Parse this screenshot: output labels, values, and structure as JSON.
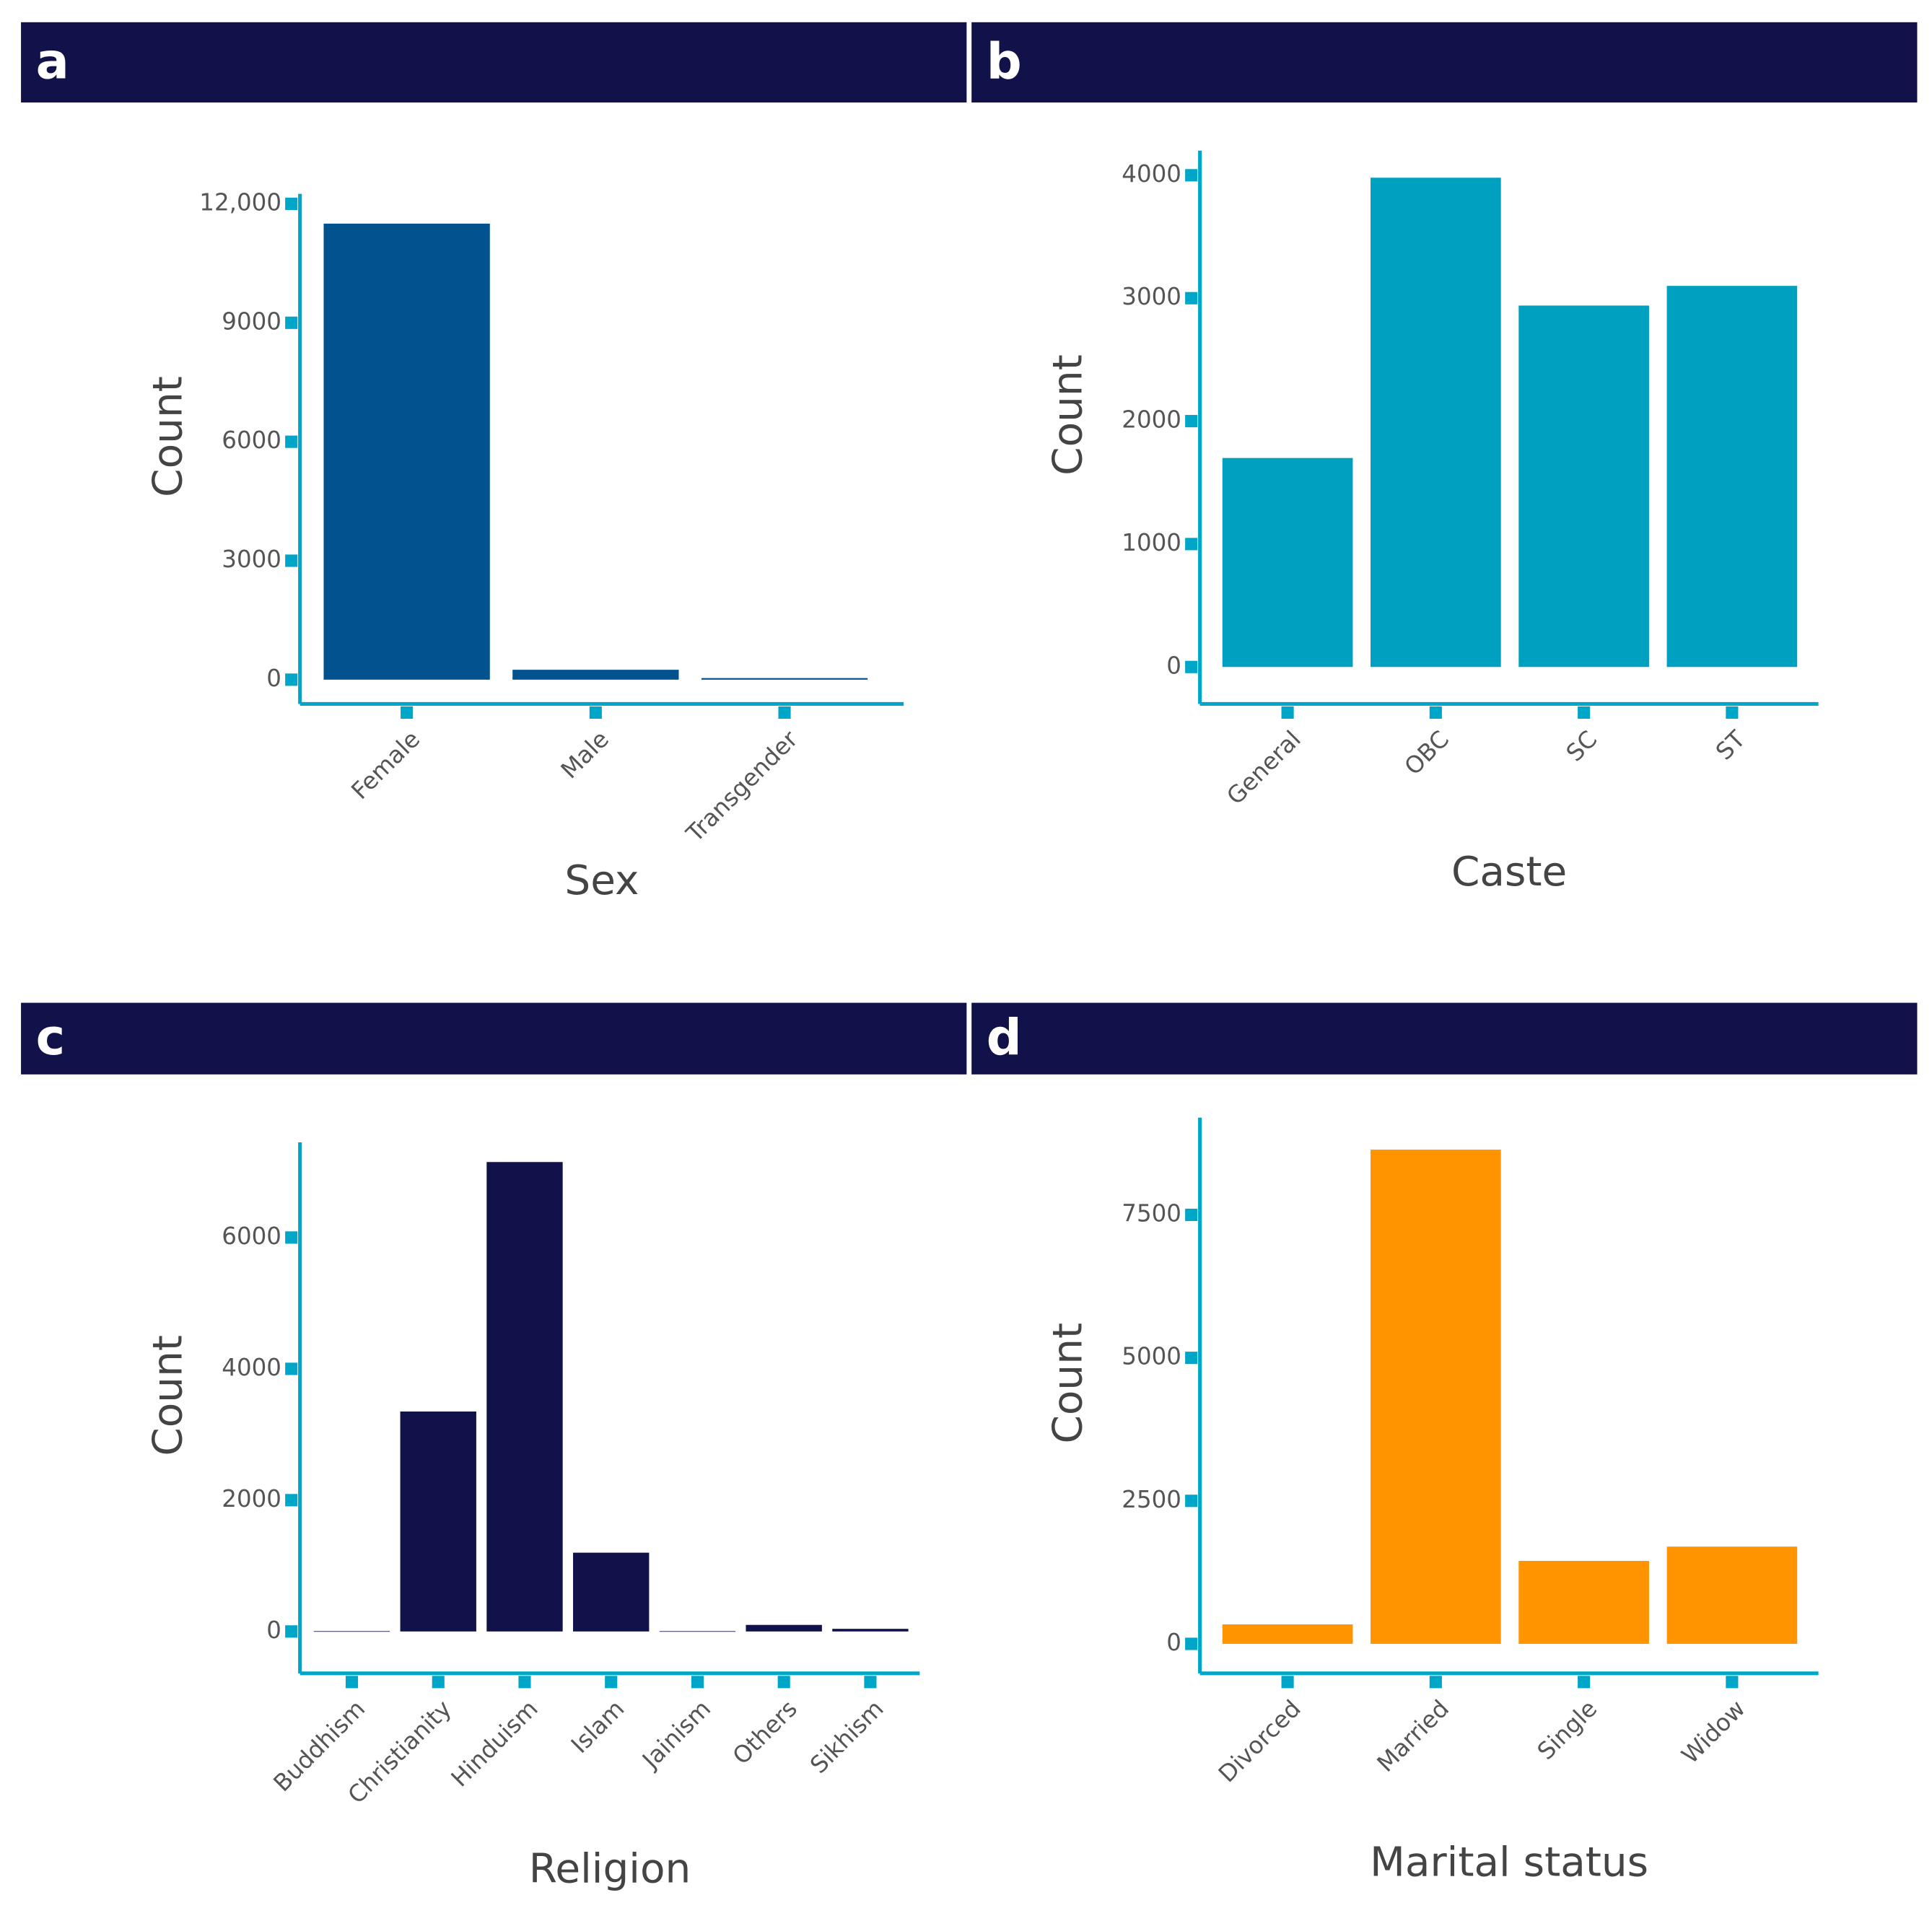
{
  "chart_data": [
    {
      "type": "bar",
      "title": "a",
      "x_label": "Sex",
      "y_label": "Count",
      "categories": [
        "Female",
        "Male",
        "Transgender"
      ],
      "values": [
        11500,
        250,
        40
      ],
      "color": "#02528f",
      "ylim": [
        -300,
        12250
      ],
      "yticks": [
        0,
        3000,
        6000,
        9000,
        {
          "value": 12000,
          "label": "12,000"
        }
      ]
    },
    {
      "type": "bar",
      "title": "b",
      "x_label": "Caste",
      "y_label": "Count",
      "categories": [
        "General",
        "OBC",
        "SC",
        "ST"
      ],
      "values": [
        1700,
        3980,
        2940,
        3100
      ],
      "color": "#00a0c0",
      "ylim": [
        -200,
        4200
      ],
      "yticks": [
        0,
        1000,
        2000,
        3000,
        4000
      ]
    },
    {
      "type": "bar",
      "title": "c",
      "x_label": "Religion",
      "y_label": "Count",
      "categories": [
        "Buddhism",
        "Christianity",
        "Hinduism",
        "Islam",
        "Jainism",
        "Others",
        "Sikhism"
      ],
      "values": [
        5,
        3350,
        7150,
        1200,
        5,
        100,
        40
      ],
      "color": "#12124a",
      "ylim": [
        -450,
        7450
      ],
      "yticks": [
        0,
        2000,
        4000,
        6000
      ]
    },
    {
      "type": "bar",
      "title": "d",
      "x_label": "Marital status",
      "y_label": "Count",
      "categories": [
        "Divorced",
        "Married",
        "Single",
        "Widow"
      ],
      "values": [
        340,
        8640,
        1450,
        1700
      ],
      "color": "#ff9400",
      "ylim": [
        -300,
        9200
      ],
      "yticks": [
        0,
        2500,
        5000,
        7500
      ]
    }
  ]
}
